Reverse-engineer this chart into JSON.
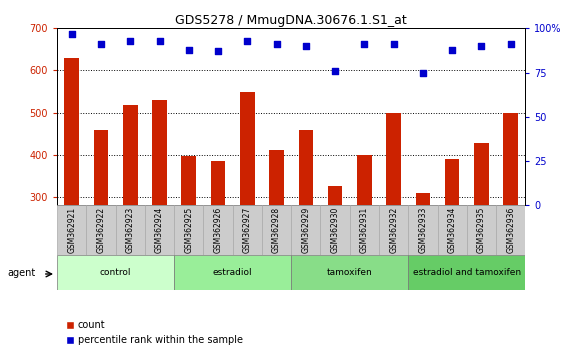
{
  "title": "GDS5278 / MmugDNA.30676.1.S1_at",
  "samples": [
    "GSM362921",
    "GSM362922",
    "GSM362923",
    "GSM362924",
    "GSM362925",
    "GSM362926",
    "GSM362927",
    "GSM362928",
    "GSM362929",
    "GSM362930",
    "GSM362931",
    "GSM362932",
    "GSM362933",
    "GSM362934",
    "GSM362935",
    "GSM362936"
  ],
  "count_values": [
    630,
    458,
    518,
    530,
    397,
    384,
    548,
    412,
    458,
    325,
    400,
    500,
    310,
    390,
    427,
    500
  ],
  "percentile_values": [
    97,
    91,
    93,
    93,
    88,
    87,
    93,
    91,
    90,
    76,
    91,
    91,
    75,
    88,
    90,
    91
  ],
  "ylim_left": [
    280,
    700
  ],
  "ylim_right": [
    0,
    100
  ],
  "yticks_left": [
    300,
    400,
    500,
    600,
    700
  ],
  "yticks_right": [
    0,
    25,
    50,
    75,
    100
  ],
  "groups": [
    {
      "label": "control",
      "start": 0,
      "end": 4,
      "color": "#ccffcc"
    },
    {
      "label": "estradiol",
      "start": 4,
      "end": 8,
      "color": "#99ee99"
    },
    {
      "label": "tamoxifen",
      "start": 8,
      "end": 12,
      "color": "#88dd88"
    },
    {
      "label": "estradiol and tamoxifen",
      "start": 12,
      "end": 16,
      "color": "#66cc66"
    }
  ],
  "bar_color": "#cc2200",
  "dot_color": "#0000cc",
  "agent_label": "agent",
  "legend_count_label": "count",
  "legend_percentile_label": "percentile rank within the sample",
  "background_color": "#ffffff",
  "tick_label_color_left": "#cc2200",
  "tick_label_color_right": "#0000cc",
  "bar_bottom": 280,
  "sample_box_color": "#cccccc",
  "sample_box_edge": "#aaaaaa"
}
